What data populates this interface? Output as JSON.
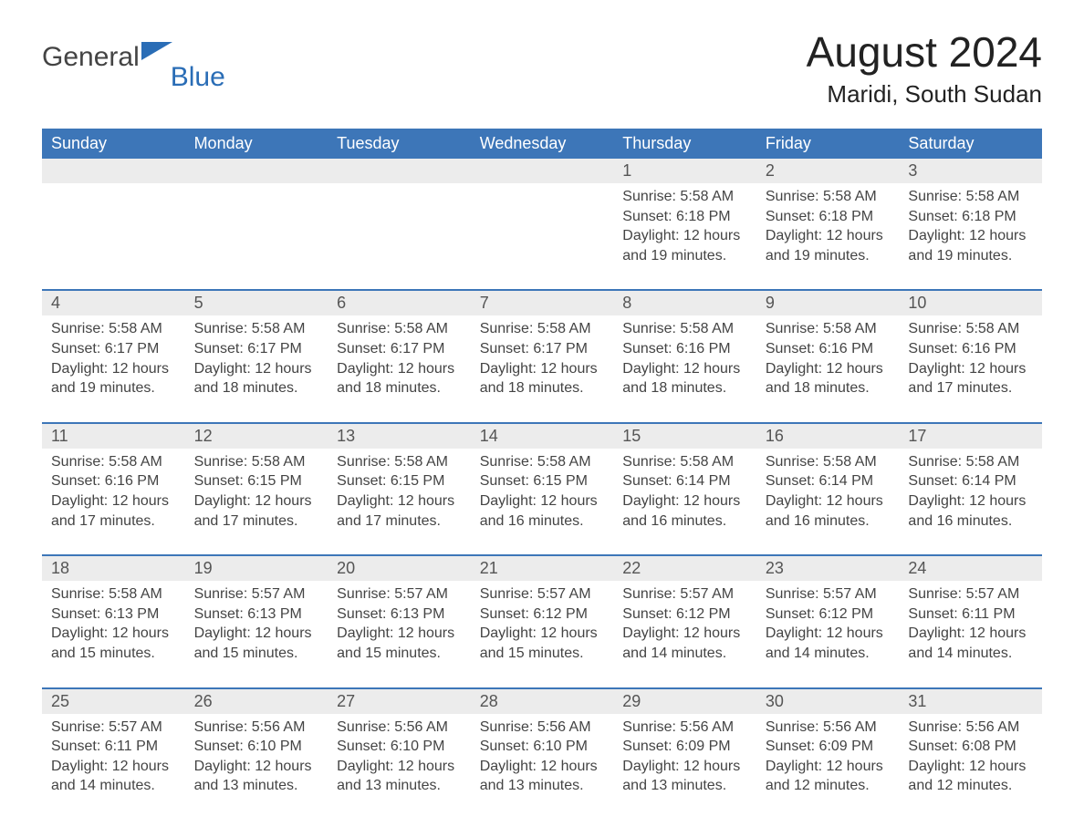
{
  "colors": {
    "header_blue": "#3d76b8",
    "accent_line": "#3d76b8",
    "dayrow_bg": "#ececec",
    "text_dark": "#333333",
    "text_gray": "#444444",
    "logo_blue": "#2a6db6",
    "background": "#ffffff"
  },
  "typography": {
    "title_fontsize": 46,
    "location_fontsize": 26,
    "dow_fontsize": 18,
    "daynum_fontsize": 18,
    "body_fontsize": 16,
    "font_family": "Arial"
  },
  "logo": {
    "part1": "General",
    "part2": "Blue"
  },
  "title": {
    "month_year": "August 2024",
    "location": "Maridi, South Sudan"
  },
  "calendar": {
    "type": "calendar-month",
    "columns": 7,
    "dow": [
      "Sunday",
      "Monday",
      "Tuesday",
      "Wednesday",
      "Thursday",
      "Friday",
      "Saturday"
    ],
    "weeks": [
      [
        null,
        null,
        null,
        null,
        {
          "n": "1",
          "sunrise": "5:58 AM",
          "sunset": "6:18 PM",
          "daylight": "12 hours and 19 minutes."
        },
        {
          "n": "2",
          "sunrise": "5:58 AM",
          "sunset": "6:18 PM",
          "daylight": "12 hours and 19 minutes."
        },
        {
          "n": "3",
          "sunrise": "5:58 AM",
          "sunset": "6:18 PM",
          "daylight": "12 hours and 19 minutes."
        }
      ],
      [
        {
          "n": "4",
          "sunrise": "5:58 AM",
          "sunset": "6:17 PM",
          "daylight": "12 hours and 19 minutes."
        },
        {
          "n": "5",
          "sunrise": "5:58 AM",
          "sunset": "6:17 PM",
          "daylight": "12 hours and 18 minutes."
        },
        {
          "n": "6",
          "sunrise": "5:58 AM",
          "sunset": "6:17 PM",
          "daylight": "12 hours and 18 minutes."
        },
        {
          "n": "7",
          "sunrise": "5:58 AM",
          "sunset": "6:17 PM",
          "daylight": "12 hours and 18 minutes."
        },
        {
          "n": "8",
          "sunrise": "5:58 AM",
          "sunset": "6:16 PM",
          "daylight": "12 hours and 18 minutes."
        },
        {
          "n": "9",
          "sunrise": "5:58 AM",
          "sunset": "6:16 PM",
          "daylight": "12 hours and 18 minutes."
        },
        {
          "n": "10",
          "sunrise": "5:58 AM",
          "sunset": "6:16 PM",
          "daylight": "12 hours and 17 minutes."
        }
      ],
      [
        {
          "n": "11",
          "sunrise": "5:58 AM",
          "sunset": "6:16 PM",
          "daylight": "12 hours and 17 minutes."
        },
        {
          "n": "12",
          "sunrise": "5:58 AM",
          "sunset": "6:15 PM",
          "daylight": "12 hours and 17 minutes."
        },
        {
          "n": "13",
          "sunrise": "5:58 AM",
          "sunset": "6:15 PM",
          "daylight": "12 hours and 17 minutes."
        },
        {
          "n": "14",
          "sunrise": "5:58 AM",
          "sunset": "6:15 PM",
          "daylight": "12 hours and 16 minutes."
        },
        {
          "n": "15",
          "sunrise": "5:58 AM",
          "sunset": "6:14 PM",
          "daylight": "12 hours and 16 minutes."
        },
        {
          "n": "16",
          "sunrise": "5:58 AM",
          "sunset": "6:14 PM",
          "daylight": "12 hours and 16 minutes."
        },
        {
          "n": "17",
          "sunrise": "5:58 AM",
          "sunset": "6:14 PM",
          "daylight": "12 hours and 16 minutes."
        }
      ],
      [
        {
          "n": "18",
          "sunrise": "5:58 AM",
          "sunset": "6:13 PM",
          "daylight": "12 hours and 15 minutes."
        },
        {
          "n": "19",
          "sunrise": "5:57 AM",
          "sunset": "6:13 PM",
          "daylight": "12 hours and 15 minutes."
        },
        {
          "n": "20",
          "sunrise": "5:57 AM",
          "sunset": "6:13 PM",
          "daylight": "12 hours and 15 minutes."
        },
        {
          "n": "21",
          "sunrise": "5:57 AM",
          "sunset": "6:12 PM",
          "daylight": "12 hours and 15 minutes."
        },
        {
          "n": "22",
          "sunrise": "5:57 AM",
          "sunset": "6:12 PM",
          "daylight": "12 hours and 14 minutes."
        },
        {
          "n": "23",
          "sunrise": "5:57 AM",
          "sunset": "6:12 PM",
          "daylight": "12 hours and 14 minutes."
        },
        {
          "n": "24",
          "sunrise": "5:57 AM",
          "sunset": "6:11 PM",
          "daylight": "12 hours and 14 minutes."
        }
      ],
      [
        {
          "n": "25",
          "sunrise": "5:57 AM",
          "sunset": "6:11 PM",
          "daylight": "12 hours and 14 minutes."
        },
        {
          "n": "26",
          "sunrise": "5:56 AM",
          "sunset": "6:10 PM",
          "daylight": "12 hours and 13 minutes."
        },
        {
          "n": "27",
          "sunrise": "5:56 AM",
          "sunset": "6:10 PM",
          "daylight": "12 hours and 13 minutes."
        },
        {
          "n": "28",
          "sunrise": "5:56 AM",
          "sunset": "6:10 PM",
          "daylight": "12 hours and 13 minutes."
        },
        {
          "n": "29",
          "sunrise": "5:56 AM",
          "sunset": "6:09 PM",
          "daylight": "12 hours and 13 minutes."
        },
        {
          "n": "30",
          "sunrise": "5:56 AM",
          "sunset": "6:09 PM",
          "daylight": "12 hours and 12 minutes."
        },
        {
          "n": "31",
          "sunrise": "5:56 AM",
          "sunset": "6:08 PM",
          "daylight": "12 hours and 12 minutes."
        }
      ]
    ],
    "labels": {
      "sunrise": "Sunrise:",
      "sunset": "Sunset:",
      "daylight": "Daylight:"
    }
  }
}
